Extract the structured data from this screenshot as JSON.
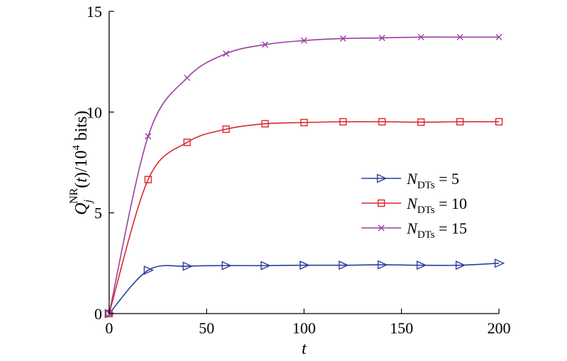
{
  "chart_data": {
    "type": "line",
    "xlabel": "t",
    "ylabel": {
      "q": "Q",
      "sub": "j",
      "sup": "NR",
      "mid": "(t)/(10",
      "exp": "4",
      "unit": " bits)"
    },
    "xlim": [
      0,
      200
    ],
    "ylim": [
      0,
      15
    ],
    "xticks": [
      0,
      50,
      100,
      150,
      200
    ],
    "yticks": [
      0,
      5,
      10,
      15
    ],
    "grid": false,
    "legend_position": "center-right",
    "legend_label": {
      "n": "N",
      "sub": "DTs"
    },
    "series": [
      {
        "name": "N_DTs = 5",
        "legend_value": "= 5",
        "color": "#2a3f9a",
        "marker": "triangle-right",
        "x": [
          0,
          20,
          40,
          60,
          80,
          100,
          120,
          140,
          160,
          180,
          200
        ],
        "y": [
          0,
          2.15,
          2.35,
          2.38,
          2.38,
          2.4,
          2.4,
          2.42,
          2.4,
          2.4,
          2.5
        ]
      },
      {
        "name": "N_DTs = 10",
        "legend_value": "= 10",
        "color": "#d9262b",
        "marker": "square",
        "x": [
          0,
          20,
          40,
          60,
          80,
          100,
          120,
          140,
          160,
          180,
          200
        ],
        "y": [
          0,
          6.65,
          8.5,
          9.15,
          9.42,
          9.48,
          9.52,
          9.52,
          9.5,
          9.52,
          9.52
        ]
      },
      {
        "name": "N_DTs = 15",
        "legend_value": "= 15",
        "color": "#9b3fa0",
        "marker": "x",
        "x": [
          0,
          20,
          40,
          60,
          80,
          100,
          120,
          140,
          160,
          180,
          200
        ],
        "y": [
          0,
          8.8,
          11.7,
          12.9,
          13.35,
          13.55,
          13.65,
          13.68,
          13.72,
          13.72,
          13.72
        ]
      }
    ]
  }
}
